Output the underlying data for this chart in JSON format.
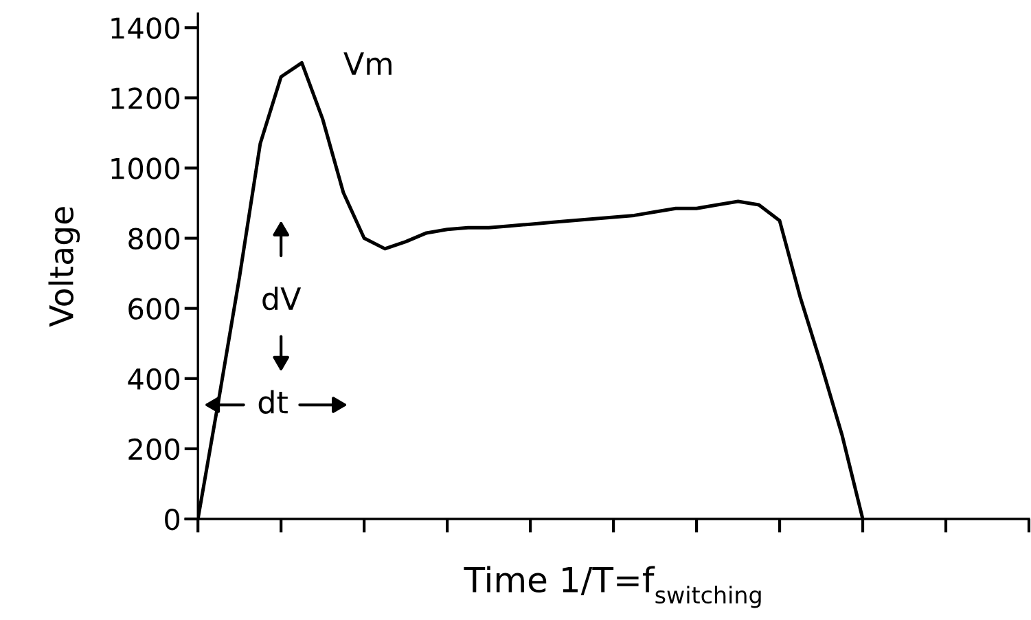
{
  "chart_data": {
    "type": "line",
    "xlabel": "Time 1/T=f$_{switching}$",
    "ylabel": "Voltage",
    "categories": [
      null,
      null,
      null,
      null,
      null,
      null,
      null,
      null,
      null,
      null,
      null,
      null,
      null,
      null,
      null,
      null,
      null,
      null,
      null,
      null,
      null,
      null,
      null,
      null,
      null,
      null,
      null,
      null,
      null,
      null,
      null,
      null,
      null,
      null,
      null,
      null,
      null,
      null,
      null,
      null,
      null
    ],
    "series": [
      {
        "color": "#000000",
        "values": [
          0,
          340,
          690,
          1070,
          1260,
          1300,
          1140,
          930,
          800,
          770,
          790,
          815,
          825,
          830,
          830,
          835,
          840,
          845,
          850,
          855,
          860,
          865,
          875,
          885,
          885,
          895,
          905,
          895,
          850,
          630,
          440,
          240,
          0,
          null,
          null,
          null,
          null,
          null,
          null,
          null,
          null
        ]
      }
    ],
    "ylim": [
      0,
      1440
    ],
    "yticks": [
      0,
      200,
      400,
      600,
      800,
      1000,
      1200,
      1400
    ],
    "annotations": [
      "Vm",
      "dV",
      "dt"
    ],
    "grid": false,
    "legend": false
  }
}
